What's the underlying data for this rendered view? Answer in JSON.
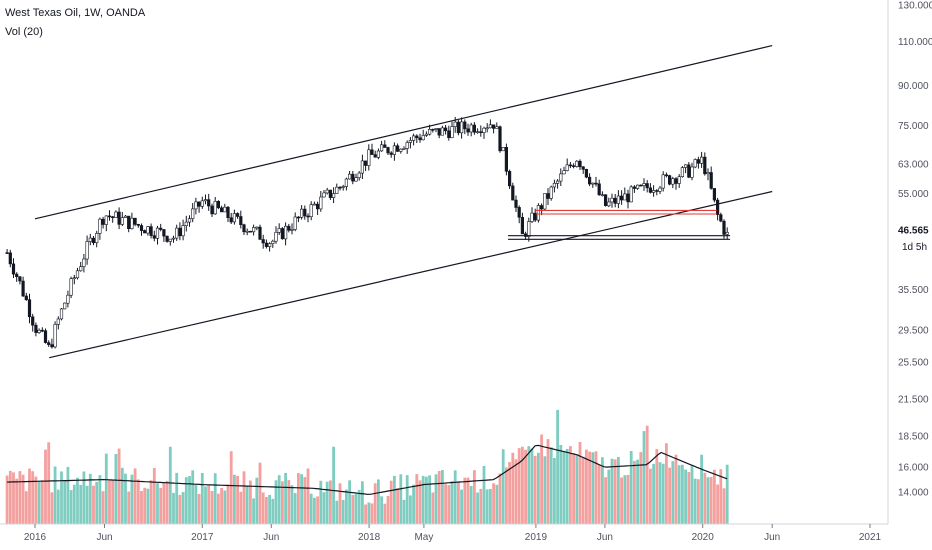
{
  "header": {
    "title": "West Texas Oil, 1W, OANDA",
    "volume_label": "Vol (20)"
  },
  "price_tag": {
    "value": "46.565",
    "countdown": "1d 5h"
  },
  "colors": {
    "up": "#26a69a",
    "down": "#ef5350",
    "vol_up": "#7fcdc1",
    "vol_down": "#f3a09e",
    "line": "#131722",
    "red_line": "#e53935"
  },
  "chart_data": {
    "type": "candlestick",
    "symbol": "West Texas Oil",
    "timeframe": "1W",
    "source": "OANDA",
    "x_ticks": [
      "2016",
      "Jun",
      "2017",
      "Jun",
      "2018",
      "May",
      "2019",
      "Jun",
      "2020",
      "Jun",
      "2021"
    ],
    "price_ticks": [
      "130.000",
      "110.000",
      "90.000",
      "75.000",
      "63.000",
      "55.000",
      "46.565",
      "35.500",
      "29.500",
      "25.500",
      "21.500",
      "18.500",
      "16.000",
      "14.000"
    ],
    "volume_ticks": [
      "21.500",
      "18.500",
      "16.000",
      "14.000"
    ],
    "price_trend": [
      {
        "date": "2015-11",
        "price": 42
      },
      {
        "date": "2016-01",
        "price": 30
      },
      {
        "date": "2016-02",
        "price": 27
      },
      {
        "date": "2016-06",
        "price": 50
      },
      {
        "date": "2016-11",
        "price": 45
      },
      {
        "date": "2017-01",
        "price": 53
      },
      {
        "date": "2017-06",
        "price": 44
      },
      {
        "date": "2017-11",
        "price": 57
      },
      {
        "date": "2018-01",
        "price": 65
      },
      {
        "date": "2018-05",
        "price": 72
      },
      {
        "date": "2018-10",
        "price": 76
      },
      {
        "date": "2018-12",
        "price": 45
      },
      {
        "date": "2019-04",
        "price": 65
      },
      {
        "date": "2019-06",
        "price": 52
      },
      {
        "date": "2019-12",
        "price": 61
      },
      {
        "date": "2020-01",
        "price": 64
      },
      {
        "date": "2020-02",
        "price": 50
      },
      {
        "date": "2020-02-28",
        "price": 44.5
      }
    ],
    "channel_lines": [
      {
        "from": {
          "date": "2016-01",
          "price": 49
        },
        "to": {
          "date": "2020-06",
          "price": 108
        }
      },
      {
        "from": {
          "date": "2016-02",
          "price": 26
        },
        "to": {
          "date": "2020-06",
          "price": 55.5
        }
      }
    ],
    "horizontal_levels": [
      {
        "price": 50.5,
        "color": "red",
        "from": "2019-01",
        "to": "2020-02"
      },
      {
        "price": 45,
        "color": "black",
        "from": "2018-11",
        "to": "2020-03"
      }
    ],
    "volume_ma_trend": [
      {
        "date": "2015-11",
        "value": 14.8
      },
      {
        "date": "2016-06",
        "value": 15.0
      },
      {
        "date": "2017-01",
        "value": 14.6
      },
      {
        "date": "2017-09",
        "value": 14.3
      },
      {
        "date": "2018-01",
        "value": 13.8
      },
      {
        "date": "2018-05",
        "value": 14.6
      },
      {
        "date": "2018-10",
        "value": 15.0
      },
      {
        "date": "2018-12",
        "value": 16.5
      },
      {
        "date": "2019-01",
        "value": 17.8
      },
      {
        "date": "2019-04",
        "value": 17.0
      },
      {
        "date": "2019-06",
        "value": 16.0
      },
      {
        "date": "2019-09",
        "value": 16.2
      },
      {
        "date": "2019-10",
        "value": 17.2
      },
      {
        "date": "2020-01",
        "value": 15.8
      },
      {
        "date": "2020-02-28",
        "value": 15.0
      }
    ],
    "grid": false
  }
}
